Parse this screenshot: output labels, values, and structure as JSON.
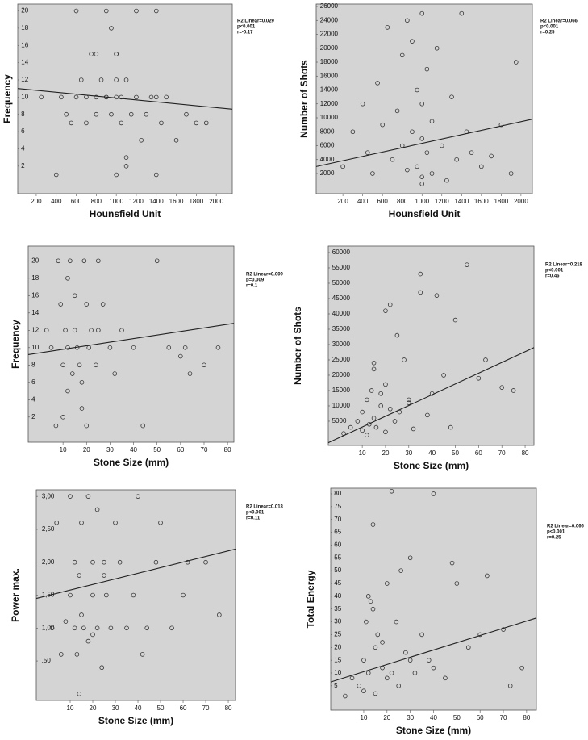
{
  "chart_data": [
    {
      "type": "scatter",
      "xlabel": "Hounsfield Unit",
      "ylabel": "Frequency",
      "annotations": [
        "R2 Linear=0.029",
        "p<0.001",
        "r=-0.17"
      ],
      "x": [
        250,
        400,
        450,
        500,
        550,
        600,
        650,
        700,
        700,
        750,
        800,
        800,
        850,
        900,
        900,
        950,
        950,
        1000,
        1000,
        1000,
        1050,
        1050,
        1100,
        1100,
        1150,
        1200,
        1200,
        1250,
        1300,
        1350,
        1400,
        1400,
        1450,
        1500,
        1600,
        1700,
        1800,
        1900,
        600,
        1000,
        1100,
        800,
        1000,
        1400,
        900
      ],
      "values": [
        10,
        1,
        10,
        8,
        7,
        20,
        12,
        10,
        7,
        15,
        10,
        8,
        12,
        20,
        10,
        18,
        8,
        10,
        12,
        15,
        10,
        7,
        12,
        2,
        8,
        20,
        10,
        5,
        8,
        10,
        20,
        1,
        7,
        10,
        5,
        8,
        7,
        7,
        10,
        1,
        3,
        15,
        15,
        10,
        10
      ],
      "trend": {
        "x": [
          15,
          2160
        ],
        "y": [
          11.0,
          8.6
        ]
      },
      "xlim": [
        15,
        2160
      ],
      "ylim": [
        -1.2,
        20.8
      ],
      "xticks": [
        200,
        400,
        600,
        800,
        1000,
        1200,
        1400,
        1600,
        1800,
        2000
      ],
      "yticks": [
        2,
        4,
        6,
        8,
        10,
        12,
        14,
        16,
        18,
        20
      ]
    },
    {
      "type": "scatter",
      "xlabel": "Hounsfield Unit",
      "ylabel": "Number of Shots",
      "annotations": [
        "R2 Linear=0.066",
        "p<0.001",
        "r=0.25"
      ],
      "x": [
        200,
        300,
        400,
        450,
        500,
        550,
        600,
        650,
        700,
        750,
        800,
        800,
        850,
        900,
        900,
        950,
        950,
        1000,
        1000,
        1000,
        1000,
        1050,
        1050,
        1100,
        1100,
        1150,
        1200,
        1250,
        1300,
        1350,
        1400,
        1450,
        1500,
        1600,
        1700,
        1800,
        1900,
        1950,
        850,
        1000
      ],
      "values": [
        3000,
        8000,
        12000,
        5000,
        2000,
        15000,
        9000,
        23000,
        4000,
        11000,
        19000,
        6000,
        2500,
        21000,
        8000,
        14000,
        3000,
        25000,
        1500,
        7000,
        12000,
        5000,
        17000,
        2000,
        9500,
        20000,
        6000,
        1000,
        13000,
        4000,
        25000,
        8000,
        5000,
        3000,
        4500,
        9000,
        2000,
        18000,
        24000,
        500
      ],
      "trend": {
        "x": [
          -70,
          2115
        ],
        "y": [
          3000,
          9800
        ]
      },
      "xlim": [
        -70,
        2115
      ],
      "ylim": [
        -900,
        26350
      ],
      "xticks": [
        200,
        400,
        600,
        800,
        1000,
        1200,
        1400,
        1600,
        1800,
        2000
      ],
      "yticks": [
        2000,
        4000,
        6000,
        8000,
        10000,
        12000,
        14000,
        16000,
        18000,
        20000,
        22000,
        24000,
        26000
      ]
    },
    {
      "type": "scatter",
      "xlabel": "Stone Size (mm)",
      "ylabel": "Frequency",
      "annotations": [
        "R2 Linear=0.009",
        "p=0.009",
        "r=0.1"
      ],
      "x": [
        3,
        5,
        7,
        8,
        9,
        10,
        10,
        11,
        12,
        12,
        13,
        14,
        15,
        15,
        16,
        17,
        18,
        19,
        20,
        20,
        21,
        22,
        24,
        25,
        27,
        30,
        32,
        35,
        40,
        44,
        50,
        55,
        60,
        62,
        64,
        70,
        76,
        12,
        18,
        25
      ],
      "values": [
        12,
        10,
        1,
        20,
        15,
        8,
        2,
        12,
        10,
        5,
        20,
        7,
        16,
        12,
        10,
        8,
        6,
        20,
        15,
        1,
        10,
        12,
        8,
        20,
        15,
        10,
        7,
        12,
        10,
        1,
        20,
        10,
        9,
        10,
        7,
        8,
        10,
        18,
        3,
        12
      ],
      "trend": {
        "x": [
          -4.8,
          82.7
        ],
        "y": [
          9.2,
          12.8
        ]
      },
      "xlim": [
        -4.8,
        82.7
      ],
      "ylim": [
        -0.9,
        21.7
      ],
      "xticks": [
        10,
        20,
        30,
        40,
        50,
        60,
        70,
        80
      ],
      "yticks": [
        2,
        4,
        6,
        8,
        10,
        12,
        14,
        16,
        18,
        20
      ]
    },
    {
      "type": "scatter",
      "xlabel": "Stone Size (mm)",
      "ylabel": "Number of Shots",
      "annotations": [
        "R2 Linear=0.218",
        "p<0.001",
        "r=0.46"
      ],
      "x": [
        2,
        5,
        8,
        10,
        10,
        12,
        13,
        14,
        15,
        15,
        16,
        18,
        20,
        20,
        22,
        24,
        25,
        26,
        28,
        30,
        32,
        35,
        35,
        38,
        40,
        42,
        45,
        48,
        50,
        55,
        60,
        63,
        70,
        75,
        12,
        18,
        22,
        15,
        30,
        20
      ],
      "values": [
        1000,
        3000,
        5000,
        2000,
        8000,
        12000,
        4000,
        15000,
        6000,
        22000,
        3000,
        10000,
        1500,
        17000,
        43000,
        5000,
        33000,
        8000,
        25000,
        12000,
        2500,
        53000,
        47000,
        7000,
        14000,
        46000,
        20000,
        3000,
        38000,
        56000,
        19000,
        25000,
        16000,
        15000,
        500,
        14000,
        9000,
        24000,
        11000,
        41000
      ],
      "trend": {
        "x": [
          -4.6,
          83.8
        ],
        "y": [
          -2000,
          29000
        ]
      },
      "xlim": [
        -4.6,
        83.8
      ],
      "ylim": [
        -2900,
        62100
      ],
      "xticks": [
        10,
        20,
        30,
        40,
        50,
        60,
        70,
        80
      ],
      "yticks": [
        5000,
        10000,
        15000,
        20000,
        25000,
        30000,
        35000,
        40000,
        45000,
        50000,
        55000,
        60000
      ]
    },
    {
      "type": "scatter",
      "xlabel": "Stone Size (mm)",
      "ylabel": "Power max.",
      "annotations": [
        "R2 Linear=0.013",
        "p<0.001",
        "r=0.11"
      ],
      "x": [
        2,
        4,
        6,
        8,
        10,
        10,
        12,
        12,
        13,
        14,
        15,
        15,
        16,
        18,
        18,
        20,
        20,
        22,
        22,
        24,
        25,
        26,
        28,
        30,
        32,
        35,
        38,
        40,
        42,
        44,
        48,
        50,
        55,
        60,
        62,
        70,
        76,
        14,
        20,
        25
      ],
      "values": [
        1.0,
        2.6,
        0.6,
        1.1,
        1.5,
        3.0,
        1.0,
        2.0,
        0.6,
        1.8,
        2.6,
        1.2,
        1.0,
        3.0,
        0.8,
        1.5,
        2.0,
        2.8,
        1.0,
        0.4,
        2.0,
        1.5,
        1.0,
        2.6,
        2.0,
        1.0,
        1.5,
        3.0,
        0.6,
        1.0,
        2.0,
        2.6,
        1.0,
        1.5,
        2.0,
        2.0,
        1.2,
        0.0,
        0.9,
        1.8
      ],
      "trend": {
        "x": [
          -5,
          83.2
        ],
        "y": [
          1.45,
          2.2
        ]
      },
      "xlim": [
        -5,
        83.2
      ],
      "ylim": [
        -0.1,
        3.1
      ],
      "xticks": [
        10,
        20,
        30,
        40,
        50,
        60,
        70,
        80
      ],
      "yticks": [
        {
          "value": 0.5,
          "label": ",50"
        },
        {
          "value": 1.0,
          "label": "1,00"
        },
        {
          "value": 1.5,
          "label": "1,50"
        },
        {
          "value": 2.0,
          "label": "2,00"
        },
        {
          "value": 2.5,
          "label": "2,50"
        },
        {
          "value": 3.0,
          "label": "3,00"
        }
      ]
    },
    {
      "type": "scatter",
      "xlabel": "Stone Size (mm)",
      "ylabel": "Total Energy",
      "annotations": [
        "R2 Linear=0.066",
        "p<0.001",
        "r=0.25"
      ],
      "x": [
        2,
        5,
        8,
        10,
        10,
        11,
        12,
        12,
        14,
        15,
        15,
        16,
        18,
        20,
        20,
        22,
        24,
        25,
        26,
        28,
        30,
        32,
        35,
        38,
        40,
        40,
        45,
        48,
        50,
        55,
        60,
        63,
        70,
        73,
        78,
        14,
        18,
        22,
        13,
        30
      ],
      "values": [
        1,
        8,
        5,
        3,
        15,
        30,
        40,
        10,
        68,
        20,
        2,
        25,
        12,
        45,
        8,
        81,
        30,
        5,
        50,
        18,
        55,
        10,
        25,
        15,
        80,
        12,
        8,
        53,
        45,
        20,
        25,
        48,
        27,
        5,
        12,
        35,
        22,
        10,
        38,
        15
      ],
      "trend": {
        "x": [
          -4.2,
          84.2
        ],
        "y": [
          6.5,
          31.5
        ]
      },
      "xlim": [
        -4.2,
        84.2
      ],
      "ylim": [
        -4.5,
        82.2
      ],
      "xticks": [
        10,
        20,
        30,
        40,
        50,
        60,
        70,
        80
      ],
      "yticks": [
        5,
        10,
        15,
        20,
        25,
        30,
        35,
        40,
        45,
        50,
        55,
        60,
        65,
        70,
        75,
        80
      ]
    }
  ]
}
